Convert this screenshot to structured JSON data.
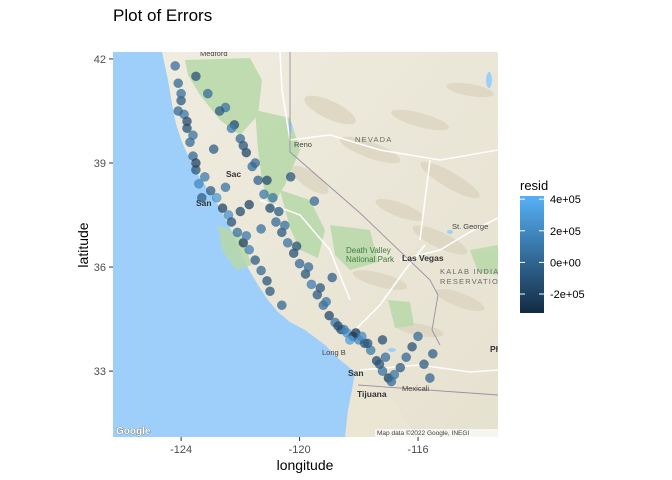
{
  "chart_data": {
    "type": "scatter",
    "title": "Plot of Errors",
    "xlabel": "longitude",
    "ylabel": "latitude",
    "xlim": [
      -126.3,
      -113.3
    ],
    "ylim": [
      31.1,
      42.2
    ],
    "xticks": [
      -124,
      -120,
      -116
    ],
    "yticks": [
      33,
      36,
      39,
      42
    ],
    "grid": false,
    "background": "Google map tiles (terrain) of California and Nevada",
    "color_scale": {
      "name": "resid",
      "min": -320000,
      "max": 420000,
      "low_color": "#132b43",
      "high_color": "#56b1f7",
      "breaks": [
        400000,
        200000,
        0,
        -200000
      ],
      "break_labels": [
        "4e+05",
        "2e+05",
        "0e+00",
        "-2e+05"
      ]
    },
    "legend_position": "right",
    "point_alpha": 0.4,
    "map_labels": {
      "states": [
        "NEVADA"
      ],
      "cities": [
        "Reno",
        "Sac",
        "San",
        "Las Vegas",
        "Long B",
        "San",
        "Tijuana",
        "Mexicali",
        "Medford",
        "St. George",
        "Ph"
      ],
      "parks": [
        "Death Valley",
        "National Park"
      ],
      "regions": [
        "KALAB INDIA",
        "RESERVATION"
      ]
    },
    "map_attribution": "Map data ©2022 Google, INEGI",
    "map_logo": "Google",
    "points_note": "",
    "series": [
      {
        "name": "",
        "x": [
          -124.2,
          -124.1,
          -124.0,
          -123.9,
          -123.8,
          -123.7,
          -123.6,
          -123.5,
          -123.4,
          -123.3,
          -124.0,
          -123.8,
          -123.6,
          -123.5,
          -123.2,
          -123.0,
          -122.8,
          -122.6,
          -122.4,
          -122.3,
          -122.1,
          -121.9,
          -121.7,
          -121.5,
          -121.3,
          -121.1,
          -122.5,
          -122.2,
          -122.0,
          -121.8,
          -121.6,
          -121.4,
          -121.2,
          -121.0,
          -120.8,
          -120.6,
          -120.4,
          -120.2,
          -120.0,
          -119.8,
          -119.6,
          -119.4,
          -119.2,
          -119.0,
          -118.8,
          -118.6,
          -118.4,
          -118.2,
          -118.0,
          -117.8,
          -117.6,
          -117.4,
          -117.2,
          -117.0,
          -116.8,
          -116.6,
          -116.4,
          -116.2,
          -116.0,
          -115.8,
          -115.6,
          -115.5,
          -117.1,
          -117.3,
          -116.9,
          -117.2,
          -118.3,
          -118.1,
          -117.9,
          -117.7,
          -118.5,
          -118.7,
          -119.1,
          -119.3,
          -119.7,
          -120.1,
          -120.5,
          -120.7,
          -120.9,
          -121.1,
          -121.5,
          -121.9,
          -122.3,
          -122.7,
          -123.1,
          -123.5,
          -124.1,
          -122.9,
          -122.5,
          -121.7,
          -121.3,
          -120.3,
          -119.5,
          -118.9,
          -120.6,
          -121.0,
          -121.8,
          -122.0
        ],
        "y": [
          41.8,
          41.3,
          40.8,
          40.4,
          40.0,
          39.6,
          39.2,
          38.8,
          38.4,
          38.0,
          41.0,
          40.2,
          39.8,
          39.0,
          38.6,
          38.2,
          38.0,
          37.7,
          37.5,
          37.3,
          37.0,
          36.7,
          36.5,
          36.2,
          35.9,
          35.6,
          40.6,
          40.1,
          39.7,
          39.3,
          38.9,
          38.5,
          38.1,
          37.7,
          37.3,
          37.0,
          36.7,
          36.4,
          36.1,
          35.8,
          35.5,
          35.2,
          34.9,
          34.6,
          34.4,
          34.2,
          34.1,
          34.0,
          33.9,
          33.8,
          33.6,
          33.3,
          33.0,
          32.8,
          32.9,
          33.1,
          33.4,
          33.7,
          34.0,
          33.2,
          32.8,
          33.5,
          33.4,
          33.2,
          32.7,
          33.9,
          33.9,
          34.1,
          34.0,
          33.8,
          34.2,
          34.3,
          35.0,
          35.4,
          36.0,
          36.6,
          37.2,
          37.6,
          38.0,
          38.5,
          39.0,
          39.5,
          40.0,
          40.5,
          41.0,
          41.5,
          40.5,
          39.4,
          38.3,
          37.8,
          37.1,
          38.6,
          37.9,
          35.7,
          34.9,
          35.3,
          36.9,
          37.6
        ],
        "resid": [
          50000,
          20000,
          -60000,
          100000,
          -120000,
          40000,
          10000,
          -90000,
          200000,
          -30000,
          60000,
          -150000,
          80000,
          -200000,
          120000,
          -40000,
          300000,
          -180000,
          250000,
          -100000,
          70000,
          -220000,
          150000,
          -50000,
          30000,
          -80000,
          90000,
          -130000,
          40000,
          -170000,
          60000,
          -20000,
          110000,
          -140000,
          20000,
          -60000,
          80000,
          -110000,
          30000,
          -90000,
          140000,
          -70000,
          50000,
          -160000,
          90000,
          -120000,
          260000,
          -190000,
          180000,
          -80000,
          130000,
          -150000,
          60000,
          -210000,
          100000,
          -40000,
          20000,
          -100000,
          40000,
          -60000,
          10000,
          -30000,
          70000,
          -90000,
          50000,
          -120000,
          320000,
          -250000,
          210000,
          -60000,
          160000,
          -130000,
          100000,
          -70000,
          40000,
          -110000,
          60000,
          -50000,
          90000,
          -140000,
          30000,
          -80000,
          120000,
          -60000,
          50000,
          -100000,
          20000,
          -40000,
          80000,
          -170000,
          70000,
          -90000,
          40000,
          -30000,
          10000,
          -60000,
          110000,
          -130000
        ]
      }
    ]
  }
}
